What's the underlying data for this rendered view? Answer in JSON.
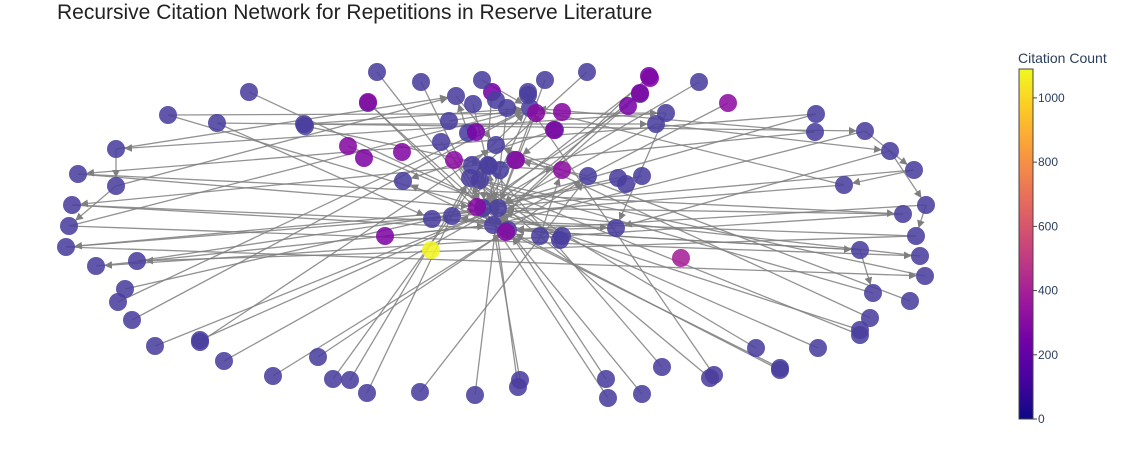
{
  "chart_data": {
    "type": "network",
    "title": "Recursive Citation Network for Repetitions in Reserve Literature",
    "colorbar": {
      "title": "Citation Count",
      "range": [
        0,
        1090
      ],
      "ticks": [
        0,
        200,
        400,
        600,
        800,
        1000
      ],
      "tick_labels": [
        "0",
        "200",
        "400",
        "600",
        "800",
        "1000"
      ],
      "colorscale": [
        "#0d0887",
        "#46039f",
        "#7201a8",
        "#9c179e",
        "#bd3786",
        "#d8576b",
        "#ed7953",
        "#fb9f3a",
        "#fdca26",
        "#f0f921"
      ]
    },
    "node_color_default": "#4a3f9e",
    "edge_color": "#7f7f7f",
    "nodes": [
      {
        "id": 0,
        "c": 20
      },
      {
        "id": 1,
        "c": 30
      },
      {
        "id": 2,
        "c": 25
      },
      {
        "id": 3,
        "c": 40
      },
      {
        "id": 4,
        "c": 35
      },
      {
        "id": 5,
        "c": 28
      },
      {
        "id": 6,
        "c": 30
      },
      {
        "id": 7,
        "c": 45
      },
      {
        "id": 8,
        "c": 38
      },
      {
        "id": 9,
        "c": 22
      },
      {
        "id": 10,
        "c": 33
      },
      {
        "id": 11,
        "c": 300
      },
      {
        "id": 12,
        "c": 40
      },
      {
        "id": 13,
        "c": 25
      },
      {
        "id": 14,
        "c": 300
      },
      {
        "id": 15,
        "c": 30
      },
      {
        "id": 16,
        "c": 30
      },
      {
        "id": 17,
        "c": 280
      },
      {
        "id": 18,
        "c": 310
      },
      {
        "id": 19,
        "c": 30
      },
      {
        "id": 20,
        "c": 320
      },
      {
        "id": 21,
        "c": 35
      },
      {
        "id": 22,
        "c": 45
      },
      {
        "id": 23,
        "c": 40
      },
      {
        "id": 24,
        "c": 30
      },
      {
        "id": 25,
        "c": 40
      },
      {
        "id": 26,
        "c": 30
      },
      {
        "id": 27,
        "c": 250
      },
      {
        "id": 28,
        "c": 40
      },
      {
        "id": 29,
        "c": 45
      },
      {
        "id": 30,
        "c": 300
      },
      {
        "id": 31,
        "c": 290
      },
      {
        "id": 32,
        "c": 60
      },
      {
        "id": 33,
        "c": 50
      },
      {
        "id": 34,
        "c": 1080
      },
      {
        "id": 35,
        "c": 400
      },
      {
        "id": 36,
        "c": 30
      },
      {
        "id": 37,
        "c": 280
      },
      {
        "id": 38,
        "c": 300
      },
      {
        "id": 39,
        "c": 260
      },
      {
        "id": 40,
        "c": 40
      },
      {
        "id": 41,
        "c": 30
      },
      {
        "id": 42,
        "c": 280
      },
      {
        "id": 43,
        "c": 300
      },
      {
        "id": 44,
        "c": 320
      },
      {
        "id": 45,
        "c": 30
      },
      {
        "id": 46,
        "c": 35
      },
      {
        "id": 47,
        "c": 40
      },
      {
        "id": 48,
        "c": 60
      },
      {
        "id": 49,
        "c": 45
      },
      {
        "id": 50,
        "c": 70
      },
      {
        "id": 51,
        "c": 30
      },
      {
        "id": 52,
        "c": 260
      },
      {
        "id": 53,
        "c": 40
      },
      {
        "id": 54,
        "c": 35
      },
      {
        "id": 55,
        "c": 30
      },
      {
        "id": 56,
        "c": 30
      },
      {
        "id": 57,
        "c": 260
      },
      {
        "id": 58,
        "c": 320
      },
      {
        "id": 59,
        "c": 30
      },
      {
        "id": 60,
        "c": 40
      },
      {
        "id": 61,
        "c": 30
      },
      {
        "id": 62,
        "c": 30
      },
      {
        "id": 63,
        "c": 30
      },
      {
        "id": 64,
        "c": 30
      },
      {
        "id": 65,
        "c": 30
      },
      {
        "id": 66,
        "c": 30
      },
      {
        "id": 67,
        "c": 30
      },
      {
        "id": 68,
        "c": 30
      },
      {
        "id": 69,
        "c": 30
      },
      {
        "id": 70,
        "c": 30
      },
      {
        "id": 71,
        "c": 30
      },
      {
        "id": 72,
        "c": 30
      },
      {
        "id": 73,
        "c": 30
      },
      {
        "id": 74,
        "c": 30
      },
      {
        "id": 75,
        "c": 30
      },
      {
        "id": 76,
        "c": 30
      },
      {
        "id": 77,
        "c": 30
      },
      {
        "id": 78,
        "c": 30
      },
      {
        "id": 79,
        "c": 30
      },
      {
        "id": 80,
        "c": 30
      },
      {
        "id": 81,
        "c": 30
      },
      {
        "id": 82,
        "c": 30
      },
      {
        "id": 83,
        "c": 30
      },
      {
        "id": 84,
        "c": 30
      },
      {
        "id": 85,
        "c": 30
      },
      {
        "id": 86,
        "c": 30
      },
      {
        "id": 87,
        "c": 30
      },
      {
        "id": 88,
        "c": 30
      },
      {
        "id": 89,
        "c": 30
      },
      {
        "id": 90,
        "c": 30
      },
      {
        "id": 91,
        "c": 30
      },
      {
        "id": 92,
        "c": 30
      },
      {
        "id": 93,
        "c": 30
      },
      {
        "id": 94,
        "c": 30
      },
      {
        "id": 95,
        "c": 30
      },
      {
        "id": 96,
        "c": 30
      },
      {
        "id": 97,
        "c": 30
      },
      {
        "id": 98,
        "c": 30
      },
      {
        "id": 99,
        "c": 30
      },
      {
        "id": 100,
        "c": 30
      },
      {
        "id": 101,
        "c": 30
      },
      {
        "id": 102,
        "c": 30
      },
      {
        "id": 103,
        "c": 30
      },
      {
        "id": 104,
        "c": 30
      },
      {
        "id": 105,
        "c": 30
      },
      {
        "id": 106,
        "c": 30
      },
      {
        "id": 107,
        "c": 30
      },
      {
        "id": 108,
        "c": 30
      },
      {
        "id": 109,
        "c": 30
      },
      {
        "id": 110,
        "c": 30
      },
      {
        "id": 111,
        "c": 300
      },
      {
        "id": 112,
        "c": 280
      },
      {
        "id": 113,
        "c": 30
      },
      {
        "id": 114,
        "c": 30
      },
      {
        "id": 115,
        "c": 30
      },
      {
        "id": 116,
        "c": 30
      },
      {
        "id": 117,
        "c": 30
      },
      {
        "id": 118,
        "c": 30
      },
      {
        "id": 119,
        "c": 30
      },
      {
        "id": 120,
        "c": 30
      },
      {
        "id": 121,
        "c": 280
      }
    ],
    "edges": [
      [
        47,
        1
      ],
      [
        8,
        1
      ],
      [
        48,
        1
      ],
      [
        49,
        8
      ],
      [
        50,
        8
      ],
      [
        45,
        8
      ],
      [
        51,
        4
      ],
      [
        52,
        2
      ],
      [
        53,
        1
      ],
      [
        54,
        0
      ],
      [
        55,
        3
      ],
      [
        56,
        2
      ],
      [
        57,
        14
      ],
      [
        58,
        2
      ],
      [
        59,
        1
      ],
      [
        60,
        16
      ],
      [
        61,
        8
      ],
      [
        62,
        1
      ],
      [
        63,
        19
      ],
      [
        64,
        0
      ],
      [
        65,
        8
      ],
      [
        66,
        2
      ],
      [
        67,
        26
      ],
      [
        68,
        19
      ],
      [
        69,
        14
      ],
      [
        70,
        1
      ],
      [
        71,
        26
      ],
      [
        72,
        8
      ],
      [
        73,
        3
      ],
      [
        74,
        19
      ],
      [
        75,
        0
      ],
      [
        76,
        8
      ],
      [
        77,
        16
      ],
      [
        78,
        0
      ],
      [
        79,
        3
      ],
      [
        80,
        1
      ],
      [
        81,
        2
      ],
      [
        82,
        0
      ],
      [
        83,
        4
      ],
      [
        84,
        1
      ],
      [
        85,
        4
      ],
      [
        86,
        8
      ],
      [
        87,
        6
      ],
      [
        88,
        8
      ],
      [
        89,
        6
      ],
      [
        90,
        4
      ],
      [
        91,
        0
      ],
      [
        92,
        6
      ],
      [
        93,
        0
      ],
      [
        94,
        4
      ],
      [
        95,
        2
      ],
      [
        96,
        0
      ],
      [
        97,
        21
      ],
      [
        98,
        5
      ],
      [
        99,
        8
      ],
      [
        100,
        3
      ],
      [
        101,
        5
      ],
      [
        102,
        3
      ],
      [
        103,
        4
      ],
      [
        104,
        21
      ],
      [
        105,
        0
      ],
      [
        106,
        5
      ],
      [
        107,
        1
      ],
      [
        108,
        3
      ],
      [
        109,
        4
      ],
      [
        110,
        5
      ],
      [
        111,
        2
      ],
      [
        112,
        0
      ],
      [
        113,
        4
      ],
      [
        114,
        1
      ],
      [
        115,
        3
      ],
      [
        116,
        0
      ],
      [
        117,
        4
      ],
      [
        118,
        2
      ],
      [
        119,
        3
      ],
      [
        120,
        5
      ],
      [
        121,
        1
      ],
      [
        3,
        15
      ],
      [
        44,
        2
      ],
      [
        43,
        0
      ],
      [
        9,
        36
      ],
      [
        1,
        4
      ],
      [
        19,
        3
      ],
      [
        25,
        0
      ],
      [
        21,
        10
      ],
      [
        32,
        3
      ],
      [
        22,
        1
      ],
      [
        2,
        36
      ],
      [
        4,
        5
      ],
      [
        27,
        1
      ],
      [
        7,
        26
      ],
      [
        33,
        8
      ],
      [
        41,
        0
      ],
      [
        14,
        1
      ],
      [
        28,
        2
      ],
      [
        12,
        15
      ],
      [
        46,
        20
      ],
      [
        11,
        3
      ],
      [
        17,
        2
      ],
      [
        24,
        1
      ],
      [
        37,
        18
      ],
      [
        38,
        0
      ],
      [
        26,
        6
      ],
      [
        13,
        20
      ],
      [
        10,
        1
      ],
      [
        59,
        63
      ],
      [
        60,
        66
      ],
      [
        61,
        64
      ],
      [
        62,
        69
      ],
      [
        63,
        67
      ],
      [
        64,
        68
      ],
      [
        65,
        74
      ],
      [
        66,
        70
      ],
      [
        67,
        71
      ],
      [
        68,
        73
      ],
      [
        69,
        75
      ],
      [
        70,
        72
      ],
      [
        71,
        76
      ],
      [
        72,
        78
      ],
      [
        73,
        77
      ],
      [
        74,
        79
      ],
      [
        75,
        81
      ],
      [
        76,
        80
      ],
      [
        77,
        82
      ],
      [
        78,
        83
      ],
      [
        79,
        85
      ]
    ]
  }
}
